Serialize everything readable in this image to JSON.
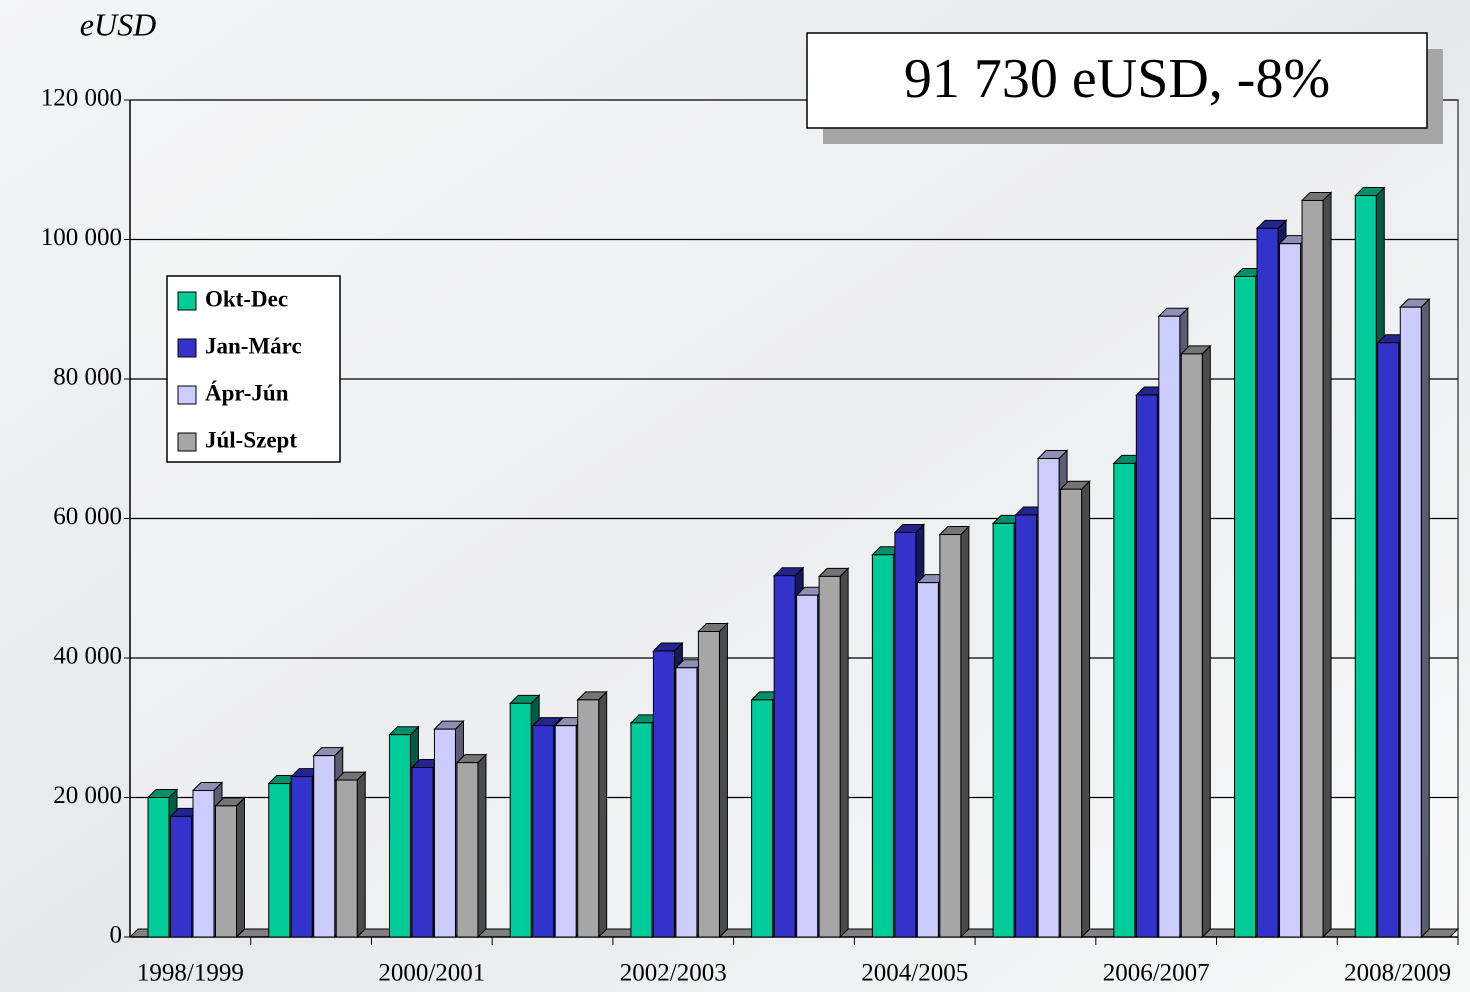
{
  "chart_data": {
    "type": "bar3d",
    "y_axis_label": "eUSD",
    "annotation": "91 730 eUSD,  -8%",
    "categories": [
      "1998/1999",
      null,
      "2000/2001",
      null,
      "2002/2003",
      null,
      "2004/2005",
      null,
      "2006/2007",
      null,
      "2008/2009"
    ],
    "series": [
      {
        "name": "Okt-Dec",
        "color": "#00cc99",
        "values": [
          20000,
          22000,
          29000,
          33500,
          30700,
          34000,
          54800,
          59300,
          67900,
          94700,
          106300
        ]
      },
      {
        "name": "Jan-Márc",
        "color": "#3333cc",
        "values": [
          17300,
          23000,
          24300,
          30300,
          41000,
          51800,
          58000,
          60500,
          77700,
          101600,
          85200
        ]
      },
      {
        "name": "Ápr-Jún",
        "color": "#ccccff",
        "values": [
          21000,
          26000,
          29800,
          30300,
          38600,
          49000,
          50800,
          68600,
          89000,
          99400,
          90300
        ]
      },
      {
        "name": "Júl-Szept",
        "color": "#a6a6a6",
        "values": [
          18800,
          22500,
          25000,
          34000,
          43800,
          51700,
          57700,
          64200,
          83600,
          105600,
          null
        ]
      }
    ],
    "ylim": [
      0,
      120000
    ],
    "yticks": [
      0,
      {
        "value": 20000,
        "label": "20 000"
      },
      {
        "value": 40000,
        "label": "40 000"
      },
      {
        "value": 60000,
        "label": "60 000"
      },
      {
        "value": 80000,
        "label": "80 000"
      },
      {
        "value": 100000,
        "label": "100 000"
      },
      {
        "value": 120000,
        "label": "120 000"
      }
    ],
    "grid": true,
    "legend_position": "left"
  }
}
